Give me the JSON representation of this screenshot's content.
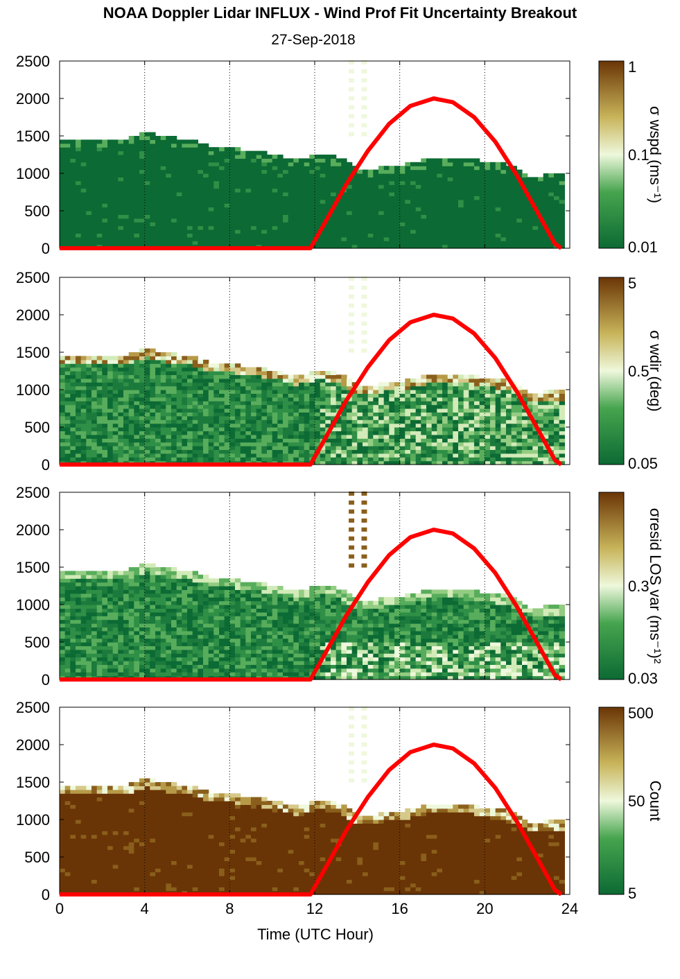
{
  "title": "NOAA Doppler Lidar INFLUX - Wind Prof Fit Uncertainty Breakout",
  "subtitle": "27-Sep-2018",
  "xlabel": "Time (UTC Hour)",
  "colors": {
    "curve": "#ff0000",
    "low": "#0c6a34",
    "mid": "#f0f8e0",
    "high": "#6a3506"
  },
  "chart_data": [
    {
      "type": "heatmap",
      "title": "",
      "x_range": [
        0,
        24
      ],
      "ylim": [
        0,
        2500
      ],
      "x_ticks": [
        "0",
        "4",
        "8",
        "12",
        "16",
        "20",
        "24"
      ],
      "y_ticks": [
        "0",
        "500",
        "1000",
        "1500",
        "2000",
        "2500"
      ],
      "grid": "dotted vertical every 4 h",
      "colorbar": {
        "label": "σ wspd (ms⁻¹)",
        "scale": "log",
        "tick_labels": [
          "1",
          "0.1",
          "0.01"
        ],
        "low_color": "#0c6a34",
        "high_color": "#6a3506"
      },
      "field": "mostly dark green (low uncertainty) below ~1000-1500 m; scattered high values near top",
      "top_height_m": [
        [
          0,
          1440
        ],
        [
          1,
          1420
        ],
        [
          2,
          1430
        ],
        [
          3,
          1450
        ],
        [
          4,
          1520
        ],
        [
          5,
          1460
        ],
        [
          6,
          1430
        ],
        [
          7,
          1340
        ],
        [
          8,
          1320
        ],
        [
          9,
          1280
        ],
        [
          10,
          1240
        ],
        [
          11,
          1160
        ],
        [
          12,
          1230
        ],
        [
          13,
          1200
        ],
        [
          14,
          1020
        ],
        [
          15,
          1060
        ],
        [
          16,
          1100
        ],
        [
          17,
          1160
        ],
        [
          18,
          1200
        ],
        [
          19,
          1200
        ],
        [
          20,
          1130
        ],
        [
          21,
          1100
        ],
        [
          22,
          940
        ],
        [
          23,
          960
        ],
        [
          23.7,
          960
        ]
      ],
      "curve": {
        "name": "",
        "x": [
          11.8,
          12.5,
          13.5,
          14.5,
          15.5,
          16.5,
          17.6,
          18.5,
          19.5,
          20.5,
          21.5,
          22.5,
          23.3,
          23.6
        ],
        "y": [
          0,
          350,
          860,
          1300,
          1660,
          1900,
          2000,
          1950,
          1750,
          1420,
          980,
          470,
          60,
          0
        ]
      }
    },
    {
      "type": "heatmap",
      "title": "",
      "x_range": [
        0,
        24
      ],
      "ylim": [
        0,
        2500
      ],
      "x_ticks": [
        "0",
        "4",
        "8",
        "12",
        "16",
        "20",
        "24"
      ],
      "y_ticks": [
        "0",
        "500",
        "1000",
        "1500",
        "2000",
        "2500"
      ],
      "grid": "dotted vertical every 4 h",
      "colorbar": {
        "label": "σ wdir (deg)",
        "scale": "log",
        "tick_labels": [
          "5",
          "0.5",
          "0.05"
        ],
        "low_color": "#0c6a34",
        "high_color": "#6a3506"
      },
      "field": "mixed greens with lighter bands; brown cells near top of data",
      "top_height_m": [
        [
          0,
          1440
        ],
        [
          1,
          1420
        ],
        [
          2,
          1430
        ],
        [
          3,
          1450
        ],
        [
          4,
          1520
        ],
        [
          5,
          1460
        ],
        [
          6,
          1430
        ],
        [
          7,
          1340
        ],
        [
          8,
          1320
        ],
        [
          9,
          1280
        ],
        [
          10,
          1240
        ],
        [
          11,
          1160
        ],
        [
          12,
          1230
        ],
        [
          13,
          1200
        ],
        [
          14,
          1020
        ],
        [
          15,
          1060
        ],
        [
          16,
          1100
        ],
        [
          17,
          1160
        ],
        [
          18,
          1200
        ],
        [
          19,
          1200
        ],
        [
          20,
          1130
        ],
        [
          21,
          1100
        ],
        [
          22,
          940
        ],
        [
          23,
          960
        ],
        [
          23.7,
          960
        ]
      ],
      "curve": {
        "name": "",
        "x": [
          11.8,
          12.5,
          13.5,
          14.5,
          15.5,
          16.5,
          17.6,
          18.5,
          19.5,
          20.5,
          21.5,
          22.5,
          23.3,
          23.6
        ],
        "y": [
          0,
          350,
          860,
          1300,
          1660,
          1900,
          2000,
          1950,
          1750,
          1420,
          980,
          470,
          60,
          0
        ]
      }
    },
    {
      "type": "heatmap",
      "title": "",
      "x_range": [
        0,
        24
      ],
      "ylim": [
        0,
        2500
      ],
      "x_ticks": [
        "0",
        "4",
        "8",
        "12",
        "16",
        "20",
        "24"
      ],
      "y_ticks": [
        "0",
        "500",
        "1000",
        "1500",
        "2000",
        "2500"
      ],
      "grid": "dotted vertical every 4 h",
      "colorbar": {
        "label": "σresid LOS var (ms⁻¹)²",
        "scale": "log",
        "tick_labels": [
          "",
          "0.3",
          "0.03"
        ],
        "low_color": "#0c6a34",
        "high_color": "#6a3506"
      },
      "field": "greens with lighter values near surface after 12 UTC",
      "top_height_m": [
        [
          0,
          1440
        ],
        [
          1,
          1420
        ],
        [
          2,
          1430
        ],
        [
          3,
          1450
        ],
        [
          4,
          1520
        ],
        [
          5,
          1460
        ],
        [
          6,
          1430
        ],
        [
          7,
          1340
        ],
        [
          8,
          1320
        ],
        [
          9,
          1280
        ],
        [
          10,
          1240
        ],
        [
          11,
          1160
        ],
        [
          12,
          1230
        ],
        [
          13,
          1200
        ],
        [
          14,
          1020
        ],
        [
          15,
          1060
        ],
        [
          16,
          1100
        ],
        [
          17,
          1160
        ],
        [
          18,
          1200
        ],
        [
          19,
          1200
        ],
        [
          20,
          1130
        ],
        [
          21,
          1100
        ],
        [
          22,
          940
        ],
        [
          23,
          960
        ],
        [
          23.7,
          960
        ]
      ],
      "curve": {
        "name": "",
        "x": [
          11.8,
          12.5,
          13.5,
          14.5,
          15.5,
          16.5,
          17.6,
          18.5,
          19.5,
          20.5,
          21.5,
          22.5,
          23.3,
          23.6
        ],
        "y": [
          0,
          350,
          860,
          1300,
          1660,
          1900,
          2000,
          1950,
          1750,
          1420,
          980,
          470,
          60,
          0
        ]
      }
    },
    {
      "type": "heatmap",
      "title": "",
      "x_range": [
        0,
        24
      ],
      "ylim": [
        0,
        2500
      ],
      "x_ticks": [
        "0",
        "4",
        "8",
        "12",
        "16",
        "20",
        "24"
      ],
      "y_ticks": [
        "0",
        "500",
        "1000",
        "1500",
        "2000",
        "2500"
      ],
      "grid": "dotted vertical every 4 h",
      "colorbar": {
        "label": "Count",
        "scale": "log",
        "tick_labels": [
          "500",
          "50",
          "5"
        ],
        "low_color": "#0c6a34",
        "high_color": "#6a3506"
      },
      "field": "dark brown (high counts ~500) below data top; lighter fringe at top",
      "top_height_m": [
        [
          0,
          1440
        ],
        [
          1,
          1420
        ],
        [
          2,
          1430
        ],
        [
          3,
          1450
        ],
        [
          4,
          1520
        ],
        [
          5,
          1460
        ],
        [
          6,
          1430
        ],
        [
          7,
          1340
        ],
        [
          8,
          1320
        ],
        [
          9,
          1280
        ],
        [
          10,
          1240
        ],
        [
          11,
          1160
        ],
        [
          12,
          1230
        ],
        [
          13,
          1200
        ],
        [
          14,
          1020
        ],
        [
          15,
          1060
        ],
        [
          16,
          1100
        ],
        [
          17,
          1160
        ],
        [
          18,
          1200
        ],
        [
          19,
          1200
        ],
        [
          20,
          1130
        ],
        [
          21,
          1100
        ],
        [
          22,
          940
        ],
        [
          23,
          960
        ],
        [
          23.7,
          960
        ]
      ],
      "curve": {
        "name": "",
        "x": [
          11.8,
          12.5,
          13.5,
          14.5,
          15.5,
          16.5,
          17.6,
          18.5,
          19.5,
          20.5,
          21.5,
          22.5,
          23.3,
          23.6
        ],
        "y": [
          0,
          350,
          860,
          1300,
          1660,
          1900,
          2000,
          1950,
          1750,
          1420,
          980,
          470,
          60,
          0
        ]
      }
    }
  ]
}
